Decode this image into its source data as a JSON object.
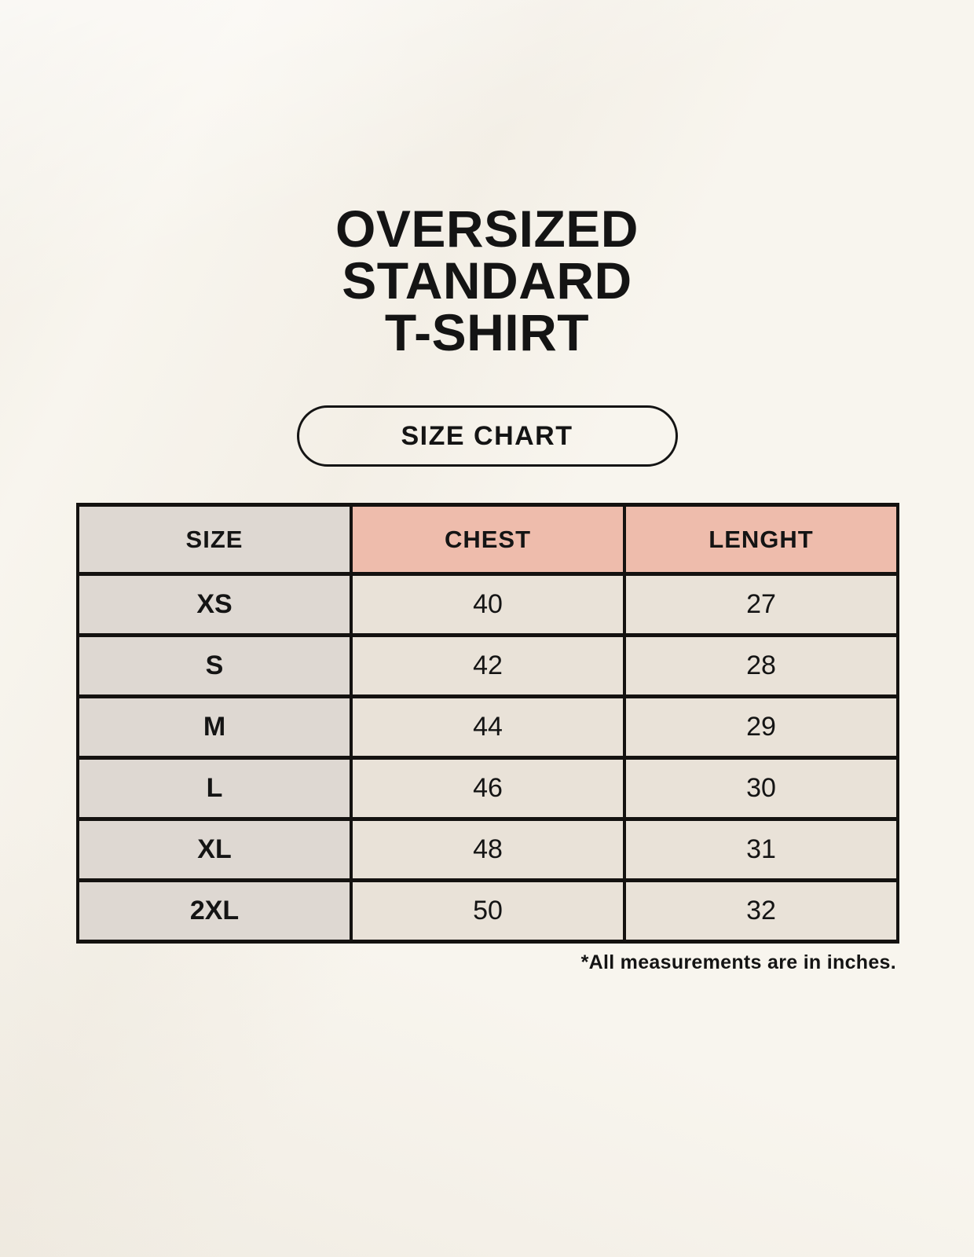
{
  "header": {
    "title_lines": [
      "OVERSIZED",
      "STANDARD",
      "T-SHIRT"
    ],
    "badge_label": "SIZE CHART"
  },
  "chart_data": {
    "type": "table",
    "title": "OVERSIZED STANDARD T-SHIRT",
    "badge": "SIZE CHART",
    "columns": [
      "SIZE",
      "CHEST",
      "LENGHT"
    ],
    "rows": [
      {
        "size": "XS",
        "chest": "40",
        "length": "27"
      },
      {
        "size": "S",
        "chest": "42",
        "length": "28"
      },
      {
        "size": "M",
        "chest": "44",
        "length": "29"
      },
      {
        "size": "L",
        "chest": "46",
        "length": "30"
      },
      {
        "size": "XL",
        "chest": "48",
        "length": "31"
      },
      {
        "size": "2XL",
        "chest": "50",
        "length": "32"
      }
    ],
    "footnote": "*All measurements are in inches."
  },
  "colors": {
    "page_background": "#f8f5ee",
    "size_column_bg": "#ded8d2",
    "measure_header_bg": "#eebcac",
    "data_cell_bg": "#e9e2d8",
    "table_border": "#141210",
    "text": "#141414"
  }
}
